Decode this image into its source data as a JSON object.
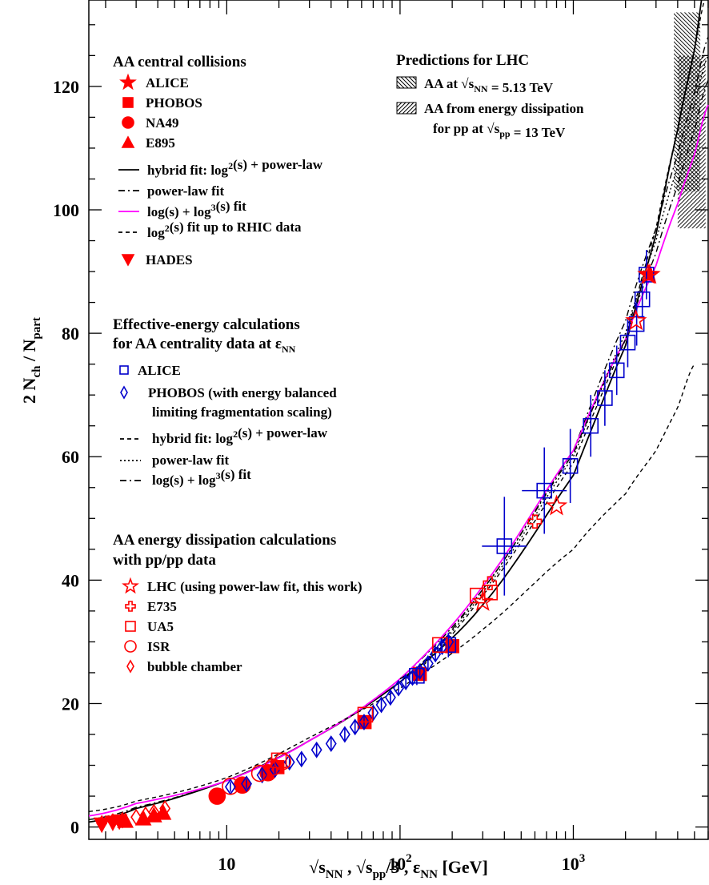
{
  "chart_data": {
    "type": "scatter",
    "xscale": "log",
    "xlim": [
      1.6,
      6000
    ],
    "ylim": [
      -2,
      134
    ],
    "xlabel": "√sNN , √spp/3 ,  εNN  [GeV]",
    "ylabel": "2 Nch / Npart",
    "x_tick_labels": [
      "10",
      "10²",
      "10³"
    ],
    "y_tick_labels": [
      "0",
      "20",
      "40",
      "60",
      "80",
      "100",
      "120"
    ],
    "legend_groups": [
      {
        "header": "AA central collisions",
        "entries": [
          "ALICE",
          "PHOBOS",
          "NA49",
          "E895",
          "hybrid fit: log²(s) + power-law",
          "power-law fit",
          "log(s) + log³(s) fit",
          "log²(s) fit up to RHIC data",
          "HADES"
        ]
      },
      {
        "header": "Effective-energy calculations",
        "header2": "for AA centrality data at εNN",
        "entries": [
          "ALICE",
          "PHOBOS (with energy balanced",
          "limiting fragmentation scaling)",
          "hybrid fit: log²(s) + power-law",
          "power-law fit",
          "log(s) + log³(s) fit"
        ]
      },
      {
        "header": "AA energy dissipation calculations",
        "header2": "with pp/pp data",
        "entries": [
          "LHC (using power-law fit, this work)",
          "E735",
          "UA5",
          "ISR",
          "bubble chamber"
        ]
      },
      {
        "header": "Predictions for LHC",
        "entries": [
          "AA at √sNN = 5.13 TeV",
          "AA from energy dissipation",
          "for pp at √spp = 13 TeV"
        ]
      }
    ],
    "colors": {
      "red": "#ff0000",
      "blue": "#0000cc",
      "magenta": "#ff00ff",
      "black": "#000000"
    },
    "curves": [
      {
        "name": "hybrid fit: log²(s) + power-law",
        "group": "AA central collisions",
        "style": "solid",
        "color": "#000000",
        "x": [
          1.6,
          3,
          10,
          30,
          100,
          300,
          1000,
          2000,
          3000,
          4000,
          5000,
          6000
        ],
        "y": [
          0.8,
          3,
          7.5,
          14,
          23.5,
          36,
          57,
          78,
          96,
          113,
          126,
          140
        ]
      },
      {
        "name": "power-law fit",
        "group": "AA central collisions",
        "style": "dashdot",
        "color": "#000000",
        "x": [
          1.6,
          3,
          10,
          30,
          100,
          300,
          1000,
          2000,
          3000,
          4000,
          5000,
          6000
        ],
        "y": [
          1.2,
          3.2,
          7.5,
          14,
          24,
          38.5,
          61,
          82,
          97,
          109,
          119,
          128
        ]
      },
      {
        "name": "log(s) + log³(s) fit",
        "group": "AA central collisions",
        "style": "solid",
        "color": "#ff00ff",
        "x": [
          1.6,
          3,
          10,
          30,
          100,
          300,
          1000,
          2000,
          3000,
          4000,
          5000,
          6000
        ],
        "y": [
          1.8,
          3.8,
          7.5,
          14,
          24,
          39,
          61,
          79,
          91,
          101,
          109,
          117
        ]
      },
      {
        "name": "log²(s) fit up to RHIC data",
        "group": "AA central collisions",
        "style": "dashed",
        "color": "#000000",
        "x": [
          1.6,
          3,
          10,
          30,
          100,
          300,
          1000,
          2000,
          3000,
          4000,
          5000
        ],
        "y": [
          2.5,
          4.2,
          8,
          14.5,
          22.5,
          32,
          45,
          54,
          61,
          68,
          75
        ]
      },
      {
        "name": "hybrid fit: log²(s) + power-law",
        "group": "Effective-energy calculations",
        "style": "dashed",
        "color": "#000000",
        "x": [
          100,
          300,
          1000,
          2000,
          3000,
          4000,
          5000,
          6000
        ],
        "y": [
          23.5,
          37.5,
          59,
          79,
          97,
          113,
          126,
          136
        ]
      },
      {
        "name": "power-law fit",
        "group": "Effective-energy calculations",
        "style": "dotted",
        "color": "#000000",
        "x": [
          100,
          300,
          1000,
          2000,
          3000,
          4000,
          5000,
          6000
        ],
        "y": [
          24,
          38,
          60,
          80,
          95,
          107,
          117,
          125
        ]
      },
      {
        "name": "log(s) + log³(s) fit",
        "group": "Effective-energy calculations",
        "style": "dashdot",
        "color": "#000000",
        "x": [
          100,
          300,
          1000,
          2000,
          3000,
          4000,
          5000,
          6000
        ],
        "y": [
          24,
          38.5,
          60.5,
          79,
          93,
          104,
          113,
          121
        ]
      }
    ],
    "series": [
      {
        "name": "HADES",
        "group": "AA central collisions",
        "marker": "tri-down",
        "filled": true,
        "color": "#ff0000",
        "x": [
          1.9,
          2.2,
          2.4
        ],
        "y": [
          0.4,
          0.7,
          0.9
        ]
      },
      {
        "name": "E895",
        "group": "AA central collisions",
        "marker": "triangle",
        "filled": true,
        "color": "#ff0000",
        "x": [
          2.6,
          3.3,
          3.8,
          4.3
        ],
        "y": [
          1.0,
          1.4,
          1.9,
          2.3
        ]
      },
      {
        "name": "NA49",
        "group": "AA central collisions",
        "marker": "circle",
        "filled": true,
        "color": "#ff0000",
        "x": [
          8.8,
          12.3,
          17.3
        ],
        "y": [
          5.0,
          6.8,
          8.8
        ]
      },
      {
        "name": "PHOBOS",
        "group": "AA central collisions",
        "marker": "square",
        "filled": true,
        "color": "#ff0000",
        "x": [
          19.6,
          62.4,
          130,
          200
        ],
        "y": [
          9.7,
          17.0,
          24.8,
          29.3
        ]
      },
      {
        "name": "ALICE",
        "group": "AA central collisions",
        "marker": "star",
        "filled": true,
        "color": "#ff0000",
        "x": [
          2760
        ],
        "y": [
          89.5
        ]
      },
      {
        "name": "ALICE",
        "group": "Effective-energy calculations",
        "marker": "square",
        "filled": false,
        "color": "#0000cc",
        "x": [
          125,
          190,
          400,
          680,
          960,
          1260,
          1520,
          1780,
          2060,
          2320,
          2500,
          2640
        ],
        "y": [
          24.5,
          29.5,
          45.5,
          54.5,
          58.5,
          65,
          69.5,
          74,
          78.5,
          81.5,
          85.5,
          89.5
        ],
        "err": [
          1.5,
          2,
          8,
          7,
          6,
          5,
          4.5,
          4,
          4,
          3.5,
          3,
          4
        ]
      },
      {
        "name": "PHOBOS (with energy balanced",
        "group": "Effective-energy calculations",
        "marker": "diamond",
        "filled": false,
        "color": "#0000cc",
        "x": [
          10.5,
          13,
          16,
          19,
          23,
          27,
          33,
          40,
          48,
          55,
          62,
          70,
          78,
          88,
          98,
          108,
          118,
          130,
          145,
          160,
          175,
          190
        ],
        "y": [
          6.5,
          7.0,
          8.4,
          9.3,
          10.5,
          11.0,
          12.5,
          13.5,
          15.0,
          16.2,
          17.0,
          18.5,
          19.8,
          21.0,
          22.5,
          23.5,
          24.2,
          25.2,
          26.5,
          28.0,
          29.2,
          30.0
        ],
        "err": [
          0.8,
          0.8,
          0.8,
          1,
          1,
          1,
          1,
          1,
          1,
          1,
          1,
          1,
          1,
          1,
          1,
          1,
          1,
          1,
          1.2,
          1.2,
          1.2,
          1.5
        ]
      },
      {
        "name": "LHC (using power-law fit, this work)",
        "group": "AA energy dissipation calculations",
        "marker": "star",
        "filled": false,
        "color": "#ff0000",
        "x": [
          300,
          800,
          2300,
          2700
        ],
        "y": [
          36.5,
          52,
          82,
          89.5
        ]
      },
      {
        "name": "E735",
        "group": "AA energy dissipation calculations",
        "marker": "cross",
        "filled": false,
        "color": "#ff0000",
        "x": [
          330,
          600
        ],
        "y": [
          39.5,
          49.5
        ]
      },
      {
        "name": "UA5",
        "group": "AA energy dissipation calculations",
        "marker": "square",
        "filled": false,
        "color": "#ff0000",
        "x": [
          20,
          63,
          170,
          280,
          330
        ],
        "y": [
          10.8,
          18.2,
          29.5,
          37.5,
          38.0
        ]
      },
      {
        "name": "ISR",
        "group": "AA energy dissipation calculations",
        "marker": "circle",
        "filled": false,
        "color": "#ff0000",
        "x": [
          10.5,
          15.5,
          18.5,
          21
        ],
        "y": [
          6.6,
          8.7,
          9.7,
          10.6
        ]
      },
      {
        "name": "bubble chamber",
        "group": "AA energy dissipation calculations",
        "marker": "diamond",
        "filled": false,
        "color": "#ff0000",
        "x": [
          1.9,
          2.2,
          2.5,
          3.0,
          3.4,
          3.8,
          4.4
        ],
        "y": [
          0.6,
          0.9,
          1.1,
          1.6,
          2.0,
          2.4,
          3.0
        ]
      }
    ],
    "prediction_bands": [
      {
        "name": "AA at √sNN = 5.13 TeV",
        "hatch": "backslash",
        "xlim": [
          3800,
          5400
        ],
        "ylim": [
          103,
          132
        ]
      },
      {
        "name": "AA from energy dissipation",
        "hatch": "slash",
        "xlim": [
          4000,
          5800
        ],
        "ylim": [
          97,
          125
        ]
      }
    ],
    "legend": "inside, upper-left and upper-right",
    "grid": false
  }
}
